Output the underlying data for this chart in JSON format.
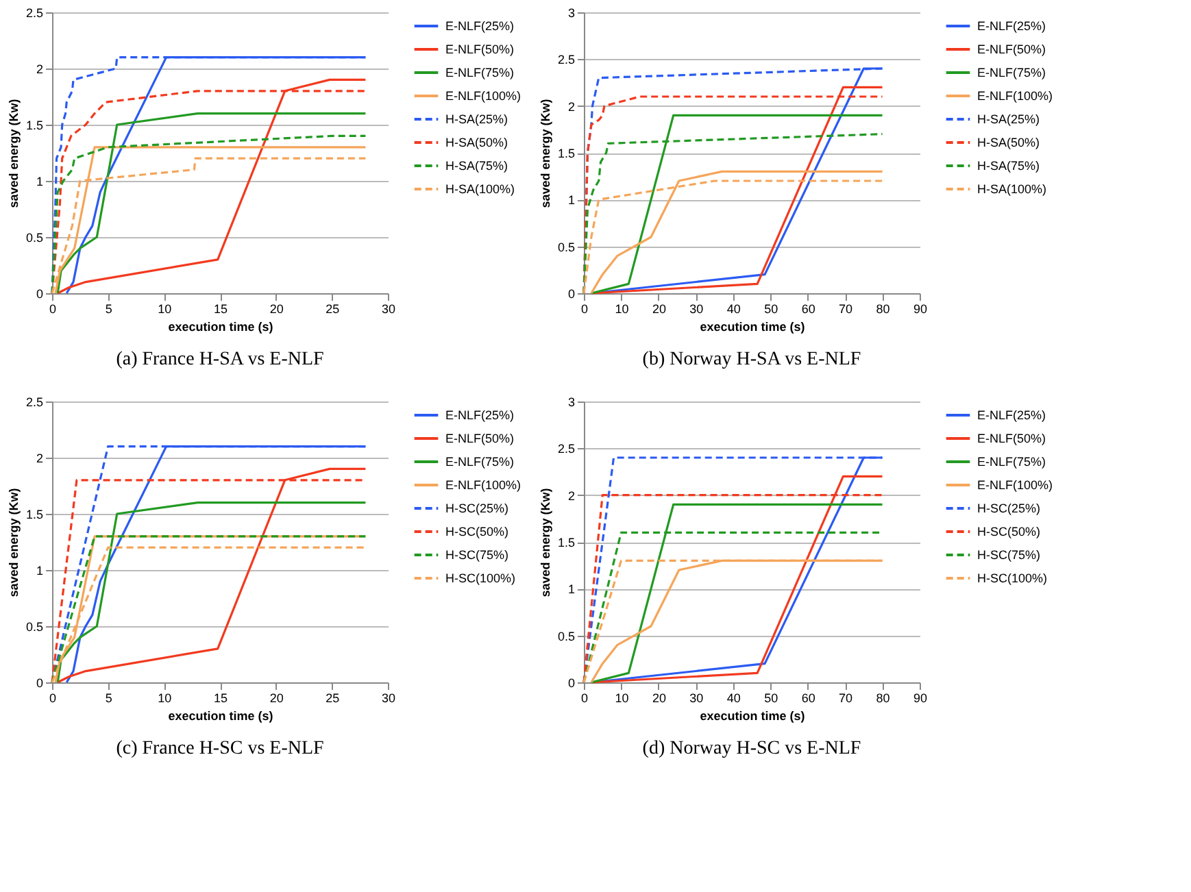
{
  "chart_data": [
    {
      "type": "line",
      "title": "(a) France H-SA vs E-NLF",
      "xlabel": "execution time (s)",
      "ylabel": "saved energy (Kw)",
      "xlim": [
        0,
        30
      ],
      "xticks": [
        0,
        5,
        10,
        15,
        20,
        25,
        30
      ],
      "ylim": [
        0,
        2.5
      ],
      "yticks": [
        0,
        0.5,
        1,
        1.5,
        2,
        2.5
      ],
      "grid": "y",
      "legend": "right",
      "series": [
        {
          "name": "E-NLF(25%)",
          "color": "#2b5bf2",
          "line_style": "solid",
          "x": [
            1.3,
            1.9,
            2.5,
            3,
            3.6,
            4.3,
            5,
            10.2,
            28
          ],
          "values": [
            0,
            0.1,
            0.4,
            0.5,
            0.6,
            0.9,
            1.05,
            2.1,
            2.1
          ]
        },
        {
          "name": "E-NLF(50%)",
          "color": "#f23a1f",
          "line_style": "solid",
          "x": [
            0.5,
            1.5,
            3,
            14.8,
            20.8,
            24.8,
            28
          ],
          "values": [
            0,
            0.05,
            0.1,
            0.3,
            1.8,
            1.9,
            1.9
          ]
        },
        {
          "name": "E-NLF(75%)",
          "color": "#229a22",
          "line_style": "solid",
          "x": [
            0.5,
            0.8,
            2,
            2.5,
            4,
            5.8,
            13,
            28
          ],
          "values": [
            0,
            0.2,
            0.35,
            0.4,
            0.5,
            1.5,
            1.6,
            1.6
          ]
        },
        {
          "name": "E-NLF(100%)",
          "color": "#f5a55a",
          "line_style": "solid",
          "x": [
            0.3,
            0.7,
            2,
            3.8,
            28
          ],
          "values": [
            0,
            0.2,
            0.4,
            1.3,
            1.3
          ]
        },
        {
          "name": "H-SA(25%)",
          "color": "#2b5bf2",
          "line_style": "dashed",
          "x": [
            0,
            0.3,
            0.4,
            0.8,
            0.9,
            1.2,
            1.3,
            1.8,
            1.9,
            5.7,
            5.8,
            28
          ],
          "values": [
            0,
            0.8,
            1.2,
            1.3,
            1.5,
            1.6,
            1.7,
            1.8,
            1.9,
            2.0,
            2.1,
            2.1
          ]
        },
        {
          "name": "H-SA(50%)",
          "color": "#f23a1f",
          "line_style": "dashed",
          "x": [
            0,
            0.7,
            0.9,
            1.3,
            1.7,
            3,
            3.8,
            4.8,
            13,
            28
          ],
          "values": [
            0,
            0.8,
            1.2,
            1.3,
            1.4,
            1.5,
            1.6,
            1.7,
            1.8,
            1.8
          ]
        },
        {
          "name": "H-SA(75%)",
          "color": "#229a22",
          "line_style": "dashed",
          "x": [
            0,
            0.5,
            1,
            1.8,
            2,
            5,
            25,
            28
          ],
          "values": [
            0,
            0.9,
            1.0,
            1.1,
            1.2,
            1.3,
            1.4,
            1.4
          ]
        },
        {
          "name": "H-SA(100%)",
          "color": "#f5a55a",
          "line_style": "dashed",
          "x": [
            0,
            1.8,
            2.5,
            12.7,
            12.8,
            28
          ],
          "values": [
            0,
            0.6,
            1.0,
            1.1,
            1.2,
            1.2
          ]
        }
      ]
    },
    {
      "type": "line",
      "title": "(b) Norway H-SA vs E-NLF",
      "xlabel": "execution time (s)",
      "ylabel": "saved energy (Kw)",
      "xlim": [
        0,
        90
      ],
      "xticks": [
        0,
        10,
        20,
        30,
        40,
        50,
        60,
        70,
        80,
        90
      ],
      "ylim": [
        0,
        3
      ],
      "yticks": [
        0,
        0.5,
        1,
        1.5,
        2,
        2.5,
        3
      ],
      "grid": "y",
      "legend": "right",
      "series": [
        {
          "name": "E-NLF(25%)",
          "color": "#2b5bf2",
          "line_style": "solid",
          "x": [
            2,
            48.5,
            75,
            80
          ],
          "values": [
            0,
            0.2,
            2.4,
            2.4
          ]
        },
        {
          "name": "E-NLF(50%)",
          "color": "#f23a1f",
          "line_style": "solid",
          "x": [
            2,
            46.5,
            69.5,
            80
          ],
          "values": [
            0,
            0.1,
            2.2,
            2.2
          ]
        },
        {
          "name": "E-NLF(75%)",
          "color": "#229a22",
          "line_style": "solid",
          "x": [
            2,
            12,
            24,
            80
          ],
          "values": [
            0,
            0.1,
            1.9,
            1.9
          ]
        },
        {
          "name": "E-NLF(100%)",
          "color": "#f5a55a",
          "line_style": "solid",
          "x": [
            2,
            5,
            9,
            18,
            25.5,
            37,
            80
          ],
          "values": [
            0,
            0.2,
            0.4,
            0.6,
            1.2,
            1.3,
            1.3
          ]
        },
        {
          "name": "H-SA(25%)",
          "color": "#2b5bf2",
          "line_style": "dashed",
          "x": [
            0,
            1,
            2,
            2.3,
            4,
            80
          ],
          "values": [
            0,
            1.5,
            1.8,
            2.0,
            2.3,
            2.4
          ]
        },
        {
          "name": "H-SA(50%)",
          "color": "#f23a1f",
          "line_style": "dashed",
          "x": [
            0,
            1,
            2,
            4,
            5,
            5.5,
            15,
            80
          ],
          "values": [
            0,
            1.5,
            1.8,
            1.85,
            1.9,
            2.0,
            2.1,
            2.1
          ]
        },
        {
          "name": "H-SA(75%)",
          "color": "#229a22",
          "line_style": "dashed",
          "x": [
            0,
            1,
            2.5,
            4,
            4.5,
            6,
            6.5,
            80
          ],
          "values": [
            0,
            0.9,
            1.1,
            1.2,
            1.4,
            1.5,
            1.6,
            1.7
          ]
        },
        {
          "name": "H-SA(100%)",
          "color": "#f5a55a",
          "line_style": "dashed",
          "x": [
            0,
            2,
            4,
            35,
            80
          ],
          "values": [
            0,
            0.6,
            1.0,
            1.2,
            1.2
          ]
        }
      ]
    },
    {
      "type": "line",
      "title": "(c) France H-SC vs E-NLF",
      "xlabel": "execution time (s)",
      "ylabel": "saved energy (Kw)",
      "xlim": [
        0,
        30
      ],
      "xticks": [
        0,
        5,
        10,
        15,
        20,
        25,
        30
      ],
      "ylim": [
        0,
        2.5
      ],
      "yticks": [
        0,
        0.5,
        1,
        1.5,
        2,
        2.5
      ],
      "grid": "y",
      "legend": "right",
      "series": [
        {
          "name": "E-NLF(25%)",
          "color": "#2b5bf2",
          "line_style": "solid",
          "x": [
            1.3,
            1.9,
            2.5,
            3,
            3.6,
            4.3,
            5,
            10.2,
            28
          ],
          "values": [
            0,
            0.1,
            0.4,
            0.5,
            0.6,
            0.9,
            1.05,
            2.1,
            2.1
          ]
        },
        {
          "name": "E-NLF(50%)",
          "color": "#f23a1f",
          "line_style": "solid",
          "x": [
            0.5,
            1.5,
            3,
            14.8,
            20.8,
            24.8,
            28
          ],
          "values": [
            0,
            0.05,
            0.1,
            0.3,
            1.8,
            1.9,
            1.9
          ]
        },
        {
          "name": "E-NLF(75%)",
          "color": "#229a22",
          "line_style": "solid",
          "x": [
            0.5,
            0.8,
            2,
            2.5,
            4,
            5.8,
            13,
            28
          ],
          "values": [
            0,
            0.2,
            0.35,
            0.4,
            0.5,
            1.5,
            1.6,
            1.6
          ]
        },
        {
          "name": "E-NLF(100%)",
          "color": "#f5a55a",
          "line_style": "solid",
          "x": [
            0.3,
            0.7,
            2,
            3.8,
            28
          ],
          "values": [
            0,
            0.2,
            0.4,
            1.3,
            1.3
          ]
        },
        {
          "name": "H-SC(25%)",
          "color": "#2b5bf2",
          "line_style": "dashed",
          "x": [
            0,
            5,
            28
          ],
          "values": [
            0,
            2.1,
            2.1
          ]
        },
        {
          "name": "H-SC(50%)",
          "color": "#f23a1f",
          "line_style": "dashed",
          "x": [
            0,
            2.2,
            28
          ],
          "values": [
            0,
            1.8,
            1.8
          ]
        },
        {
          "name": "H-SC(75%)",
          "color": "#229a22",
          "line_style": "dashed",
          "x": [
            0,
            3.8,
            28
          ],
          "values": [
            0,
            1.3,
            1.3
          ]
        },
        {
          "name": "H-SC(100%)",
          "color": "#f5a55a",
          "line_style": "dashed",
          "x": [
            0,
            5,
            28
          ],
          "values": [
            0,
            1.2,
            1.2
          ]
        }
      ]
    },
    {
      "type": "line",
      "title": "(d) Norway H-SC vs E-NLF",
      "xlabel": "execution time (s)",
      "ylabel": "saved energy (Kw)",
      "xlim": [
        0,
        90
      ],
      "xticks": [
        0,
        10,
        20,
        30,
        40,
        50,
        60,
        70,
        80,
        90
      ],
      "ylim": [
        0,
        3
      ],
      "yticks": [
        0,
        0.5,
        1,
        1.5,
        2,
        2.5,
        3
      ],
      "grid": "y",
      "legend": "right",
      "series": [
        {
          "name": "E-NLF(25%)",
          "color": "#2b5bf2",
          "line_style": "solid",
          "x": [
            2,
            48.5,
            75,
            80
          ],
          "values": [
            0,
            0.2,
            2.4,
            2.4
          ]
        },
        {
          "name": "E-NLF(50%)",
          "color": "#f23a1f",
          "line_style": "solid",
          "x": [
            2,
            46.5,
            69.5,
            80
          ],
          "values": [
            0,
            0.1,
            2.2,
            2.2
          ]
        },
        {
          "name": "E-NLF(75%)",
          "color": "#229a22",
          "line_style": "solid",
          "x": [
            2,
            12,
            24,
            80
          ],
          "values": [
            0,
            0.1,
            1.9,
            1.9
          ]
        },
        {
          "name": "E-NLF(100%)",
          "color": "#f5a55a",
          "line_style": "solid",
          "x": [
            2,
            5,
            9,
            18,
            25.5,
            37,
            80
          ],
          "values": [
            0,
            0.2,
            0.4,
            0.6,
            1.2,
            1.3,
            1.3
          ]
        },
        {
          "name": "H-SC(25%)",
          "color": "#2b5bf2",
          "line_style": "dashed",
          "x": [
            0,
            8,
            80
          ],
          "values": [
            0,
            2.4,
            2.4
          ]
        },
        {
          "name": "H-SC(50%)",
          "color": "#f23a1f",
          "line_style": "dashed",
          "x": [
            0,
            5,
            80
          ],
          "values": [
            0,
            2.0,
            2.0
          ]
        },
        {
          "name": "H-SC(75%)",
          "color": "#229a22",
          "line_style": "dashed",
          "x": [
            0,
            10,
            80
          ],
          "values": [
            0,
            1.6,
            1.6
          ]
        },
        {
          "name": "H-SC(100%)",
          "color": "#f5a55a",
          "line_style": "dashed",
          "x": [
            0,
            10,
            80
          ],
          "values": [
            0,
            1.3,
            1.3
          ]
        }
      ]
    }
  ]
}
